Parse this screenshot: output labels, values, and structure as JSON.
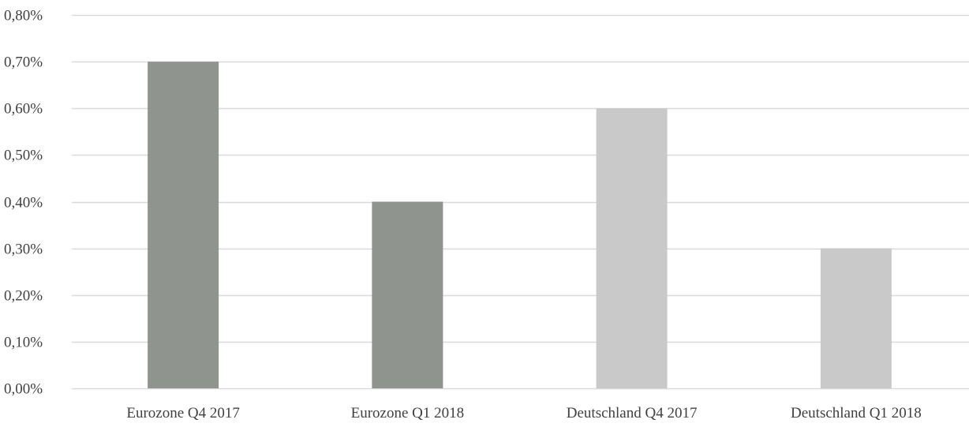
{
  "chart_data": {
    "type": "bar",
    "categories": [
      "Eurozone Q4 2017",
      "Eurozone Q1 2018",
      "Deutschland Q4 2017",
      "Deutschland Q1 2018"
    ],
    "values": [
      0.007,
      0.004,
      0.006,
      0.003
    ],
    "bar_colors": [
      "#8f948e",
      "#8f948e",
      "#c9c9c9",
      "#c9c9c9"
    ],
    "ylim": [
      0,
      0.008
    ],
    "yticks": [
      0,
      0.001,
      0.002,
      0.003,
      0.004,
      0.005,
      0.006,
      0.007,
      0.008
    ],
    "ytick_labels": [
      "0,00%",
      "0,10%",
      "0,20%",
      "0,30%",
      "0,40%",
      "0,50%",
      "0,60%",
      "0,70%",
      "0,80%"
    ],
    "grid": true,
    "gridline_color": "#d9d9d9",
    "title": "",
    "xlabel": "",
    "ylabel": ""
  }
}
